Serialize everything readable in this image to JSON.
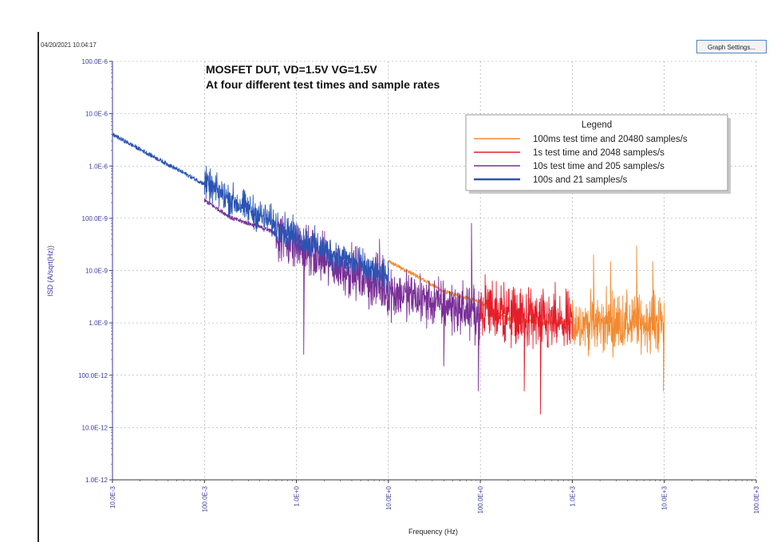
{
  "header": {
    "timestamp": "04/20/2021 10:04:17",
    "graph_settings_label": "Graph Settings..."
  },
  "chart_data": {
    "type": "line",
    "title": "MOSFET DUT, VD=1.5V VG=1.5V",
    "subtitle": "At four different test times and sample rates",
    "xlabel": "Frequency (Hz)",
    "ylabel": "ISD (A/sqrt(Hz))",
    "x_scale": "log",
    "y_scale": "log",
    "xlim": [
      0.01,
      100000
    ],
    "ylim": [
      1e-12,
      0.0001
    ],
    "x_ticks": [
      "10.0E-3",
      "100.0E-3",
      "1.0E+0",
      "10.0E+0",
      "100.0E+0",
      "1.0E+3",
      "10.0E+3",
      "100.0E+3"
    ],
    "y_ticks": [
      "100.0E-6",
      "10.0E-6",
      "1.0E-6",
      "100.0E-9",
      "10.0E-9",
      "1.0E-9",
      "100.0E-12",
      "10.0E-12",
      "1.0E-12"
    ],
    "grid": true,
    "legend_title": "Legend",
    "legend_position": "top-right",
    "series": [
      {
        "name": "100ms test time and 20480 samples/s",
        "color": "#f28a30",
        "style": "noisy",
        "x": [
          10,
          20,
          40,
          100,
          200,
          500,
          1000,
          2000,
          5000,
          10000
        ],
        "y": [
          1.5e-08,
          8e-09,
          4e-09,
          2.5e-09,
          1.2e-09,
          1e-09,
          1e-09,
          1e-09,
          1e-09,
          1e-09
        ],
        "noise_x_range": [
          1000,
          10000
        ],
        "noise_spread": 0.8,
        "peaks": [
          [
            1700,
            2e-08
          ],
          [
            2600,
            1.5e-08
          ],
          [
            5000,
            3e-08
          ],
          [
            7500,
            1.5e-08
          ]
        ],
        "dips": [
          [
            9800,
            5e-11
          ]
        ]
      },
      {
        "name": "1s test time and 2048 samples/s",
        "color": "#e51d2a",
        "style": "noisy",
        "x": [
          100,
          200,
          500,
          1000
        ],
        "y": [
          2e-09,
          1.4e-09,
          1e-09,
          9e-10
        ],
        "noise_x_range": [
          100,
          1000
        ],
        "noise_spread": 0.85,
        "peaks": [
          [
            180,
            6e-09
          ],
          [
            650,
            6e-09
          ]
        ],
        "dips": [
          [
            450,
            1.8e-11
          ],
          [
            300,
            5e-11
          ]
        ]
      },
      {
        "name": "10s test time and 205 samples/s",
        "color": "#7a2f96",
        "style": "noisy",
        "x": [
          0.1,
          0.2,
          0.5,
          1,
          2,
          5,
          10,
          20,
          50,
          100
        ],
        "y": [
          2.2e-07,
          1e-07,
          6e-08,
          3e-08,
          1.5e-08,
          8e-09,
          4e-09,
          3e-09,
          2e-09,
          1.5e-09
        ],
        "noise_x_range": [
          0.6,
          100
        ],
        "noise_spread": 0.7,
        "peaks": [
          [
            80,
            8e-08
          ],
          [
            8,
            4e-08
          ]
        ],
        "dips": [
          [
            95,
            5e-11
          ],
          [
            1.2,
            2.5e-10
          ],
          [
            40,
            1.5e-10
          ]
        ]
      },
      {
        "name": "100s and 21 samples/s",
        "color": "#2a54b4",
        "style": "noisy",
        "x": [
          0.01,
          0.1,
          0.2,
          0.5,
          1,
          2,
          5,
          10
        ],
        "y": [
          4e-06,
          4.5e-07,
          2.2e-07,
          9e-08,
          4.5e-08,
          2.5e-08,
          1.2e-08,
          7e-09
        ],
        "noise_x_range": [
          0.1,
          10
        ],
        "noise_spread": 0.45,
        "peaks": [],
        "dips": []
      }
    ]
  }
}
